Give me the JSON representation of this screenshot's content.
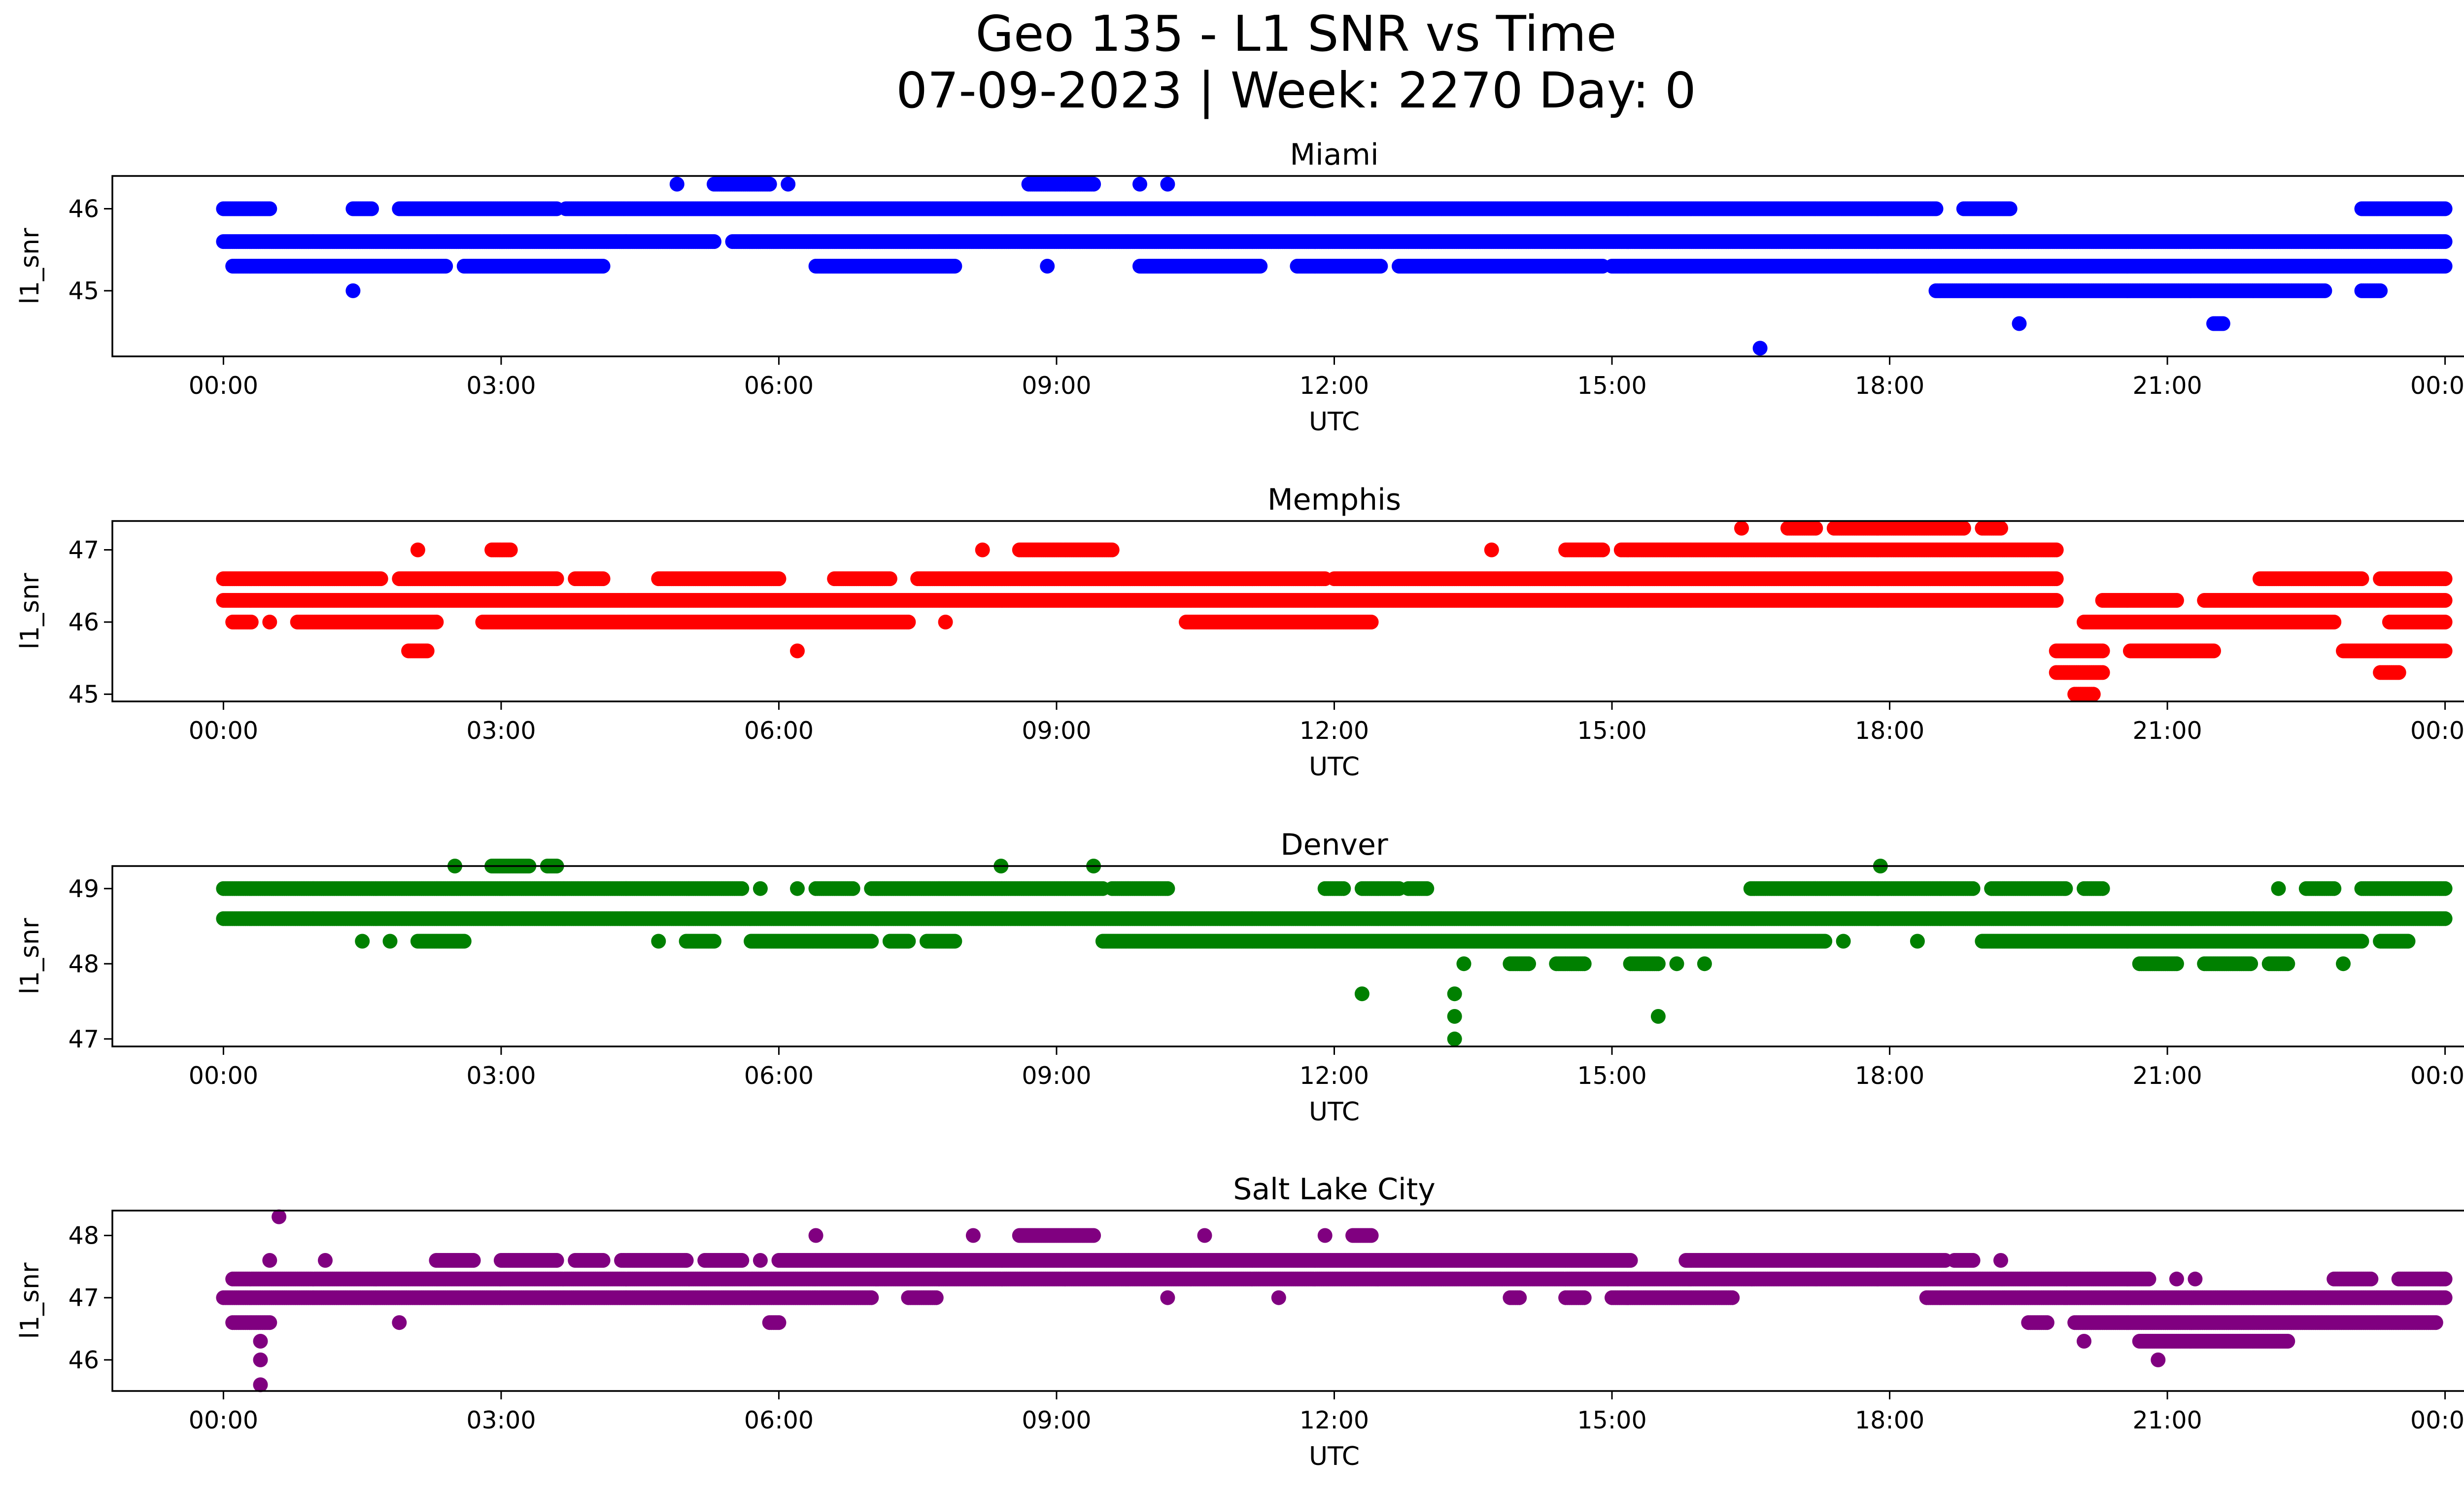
{
  "figure": {
    "title_line1": "Geo 135 - L1 SNR vs Time",
    "title_line2": "07-09-2023 | Week: 2270 Day: 0"
  },
  "chart_data": [
    {
      "type": "scatter",
      "title": "Miami",
      "xlabel": "UTC",
      "ylabel": "l1_snr",
      "color": "#0000ff",
      "x_ticks": [
        "00:00",
        "03:00",
        "06:00",
        "09:00",
        "12:00",
        "15:00",
        "18:00",
        "21:00",
        "00:00"
      ],
      "xlim_hours": [
        -1.2,
        25.2
      ],
      "ylim": [
        44.2,
        46.4
      ],
      "y_ticks": [
        45,
        46
      ],
      "levels": [
        {
          "y": 46.3,
          "spans": [
            [
              4.9,
              4.9
            ],
            [
              5.3,
              5.9
            ],
            [
              6.1,
              6.1
            ],
            [
              8.7,
              9.4
            ],
            [
              9.9,
              9.9
            ],
            [
              10.2,
              10.2
            ]
          ]
        },
        {
          "y": 46.0,
          "spans": [
            [
              0.0,
              0.5
            ],
            [
              1.4,
              1.6
            ],
            [
              1.9,
              3.6
            ],
            [
              3.7,
              18.5
            ],
            [
              18.8,
              19.3
            ],
            [
              23.1,
              24.0
            ]
          ]
        },
        {
          "y": 45.6,
          "spans": [
            [
              0.0,
              5.3
            ],
            [
              5.5,
              24.0
            ]
          ]
        },
        {
          "y": 45.3,
          "spans": [
            [
              0.1,
              2.4
            ],
            [
              2.6,
              4.1
            ],
            [
              6.4,
              7.9
            ],
            [
              8.9,
              8.9
            ],
            [
              9.9,
              11.2
            ],
            [
              11.6,
              12.5
            ],
            [
              12.7,
              14.9
            ],
            [
              15.0,
              24.0
            ]
          ]
        },
        {
          "y": 45.0,
          "spans": [
            [
              1.4,
              1.4
            ],
            [
              18.5,
              22.7
            ],
            [
              23.1,
              23.3
            ]
          ]
        },
        {
          "y": 44.6,
          "spans": [
            [
              19.4,
              19.4
            ],
            [
              21.5,
              21.6
            ]
          ]
        },
        {
          "y": 44.3,
          "spans": [
            [
              16.6,
              16.6
            ]
          ]
        }
      ]
    },
    {
      "type": "scatter",
      "title": "Memphis",
      "xlabel": "UTC",
      "ylabel": "l1_snr",
      "color": "#ff0000",
      "x_ticks": [
        "00:00",
        "03:00",
        "06:00",
        "09:00",
        "12:00",
        "15:00",
        "18:00",
        "21:00",
        "00:00"
      ],
      "xlim_hours": [
        -1.2,
        25.2
      ],
      "ylim": [
        44.9,
        47.4
      ],
      "y_ticks": [
        45,
        46,
        47
      ],
      "levels": [
        {
          "y": 47.3,
          "spans": [
            [
              16.4,
              16.4
            ],
            [
              16.9,
              17.2
            ],
            [
              17.4,
              18.8
            ],
            [
              19.0,
              19.2
            ]
          ]
        },
        {
          "y": 47.0,
          "spans": [
            [
              2.1,
              2.1
            ],
            [
              2.9,
              3.1
            ],
            [
              8.2,
              8.2
            ],
            [
              8.6,
              9.6
            ],
            [
              13.7,
              13.7
            ],
            [
              14.5,
              14.9
            ],
            [
              15.1,
              19.8
            ]
          ]
        },
        {
          "y": 46.6,
          "spans": [
            [
              0.0,
              1.7
            ],
            [
              1.9,
              3.6
            ],
            [
              3.8,
              4.1
            ],
            [
              4.7,
              6.0
            ],
            [
              6.6,
              7.2
            ],
            [
              7.5,
              11.9
            ],
            [
              12.0,
              19.8
            ],
            [
              22.0,
              23.1
            ],
            [
              23.3,
              24.0
            ]
          ]
        },
        {
          "y": 46.3,
          "spans": [
            [
              0.0,
              19.8
            ],
            [
              20.3,
              21.1
            ],
            [
              21.4,
              24.0
            ]
          ]
        },
        {
          "y": 46.0,
          "spans": [
            [
              0.1,
              0.3
            ],
            [
              0.5,
              0.5
            ],
            [
              0.8,
              2.3
            ],
            [
              2.8,
              7.4
            ],
            [
              7.8,
              7.8
            ],
            [
              10.4,
              12.4
            ],
            [
              20.1,
              22.8
            ],
            [
              23.4,
              24.0
            ]
          ]
        },
        {
          "y": 45.6,
          "spans": [
            [
              2.0,
              2.2
            ],
            [
              6.2,
              6.2
            ],
            [
              19.8,
              20.3
            ],
            [
              20.6,
              21.5
            ],
            [
              22.9,
              24.0
            ]
          ]
        },
        {
          "y": 45.3,
          "spans": [
            [
              19.8,
              20.3
            ],
            [
              23.3,
              23.5
            ]
          ]
        },
        {
          "y": 45.0,
          "spans": [
            [
              20.0,
              20.2
            ]
          ]
        }
      ]
    },
    {
      "type": "scatter",
      "title": "Denver",
      "xlabel": "UTC",
      "ylabel": "l1_snr",
      "color": "#008000",
      "x_ticks": [
        "00:00",
        "03:00",
        "06:00",
        "09:00",
        "12:00",
        "15:00",
        "18:00",
        "21:00",
        "00:00"
      ],
      "xlim_hours": [
        -1.2,
        25.2
      ],
      "ylim": [
        46.9,
        49.3
      ],
      "y_ticks": [
        47,
        48,
        49
      ],
      "levels": [
        {
          "y": 49.3,
          "spans": [
            [
              2.5,
              2.5
            ],
            [
              2.9,
              3.3
            ],
            [
              3.5,
              3.6
            ],
            [
              8.4,
              8.4
            ],
            [
              9.4,
              9.4
            ],
            [
              17.9,
              17.9
            ]
          ]
        },
        {
          "y": 49.0,
          "spans": [
            [
              0.0,
              5.6
            ],
            [
              5.8,
              5.8
            ],
            [
              6.2,
              6.2
            ],
            [
              6.4,
              6.8
            ],
            [
              7.0,
              9.5
            ],
            [
              9.6,
              10.2
            ],
            [
              11.9,
              12.1
            ],
            [
              12.3,
              12.7
            ],
            [
              12.8,
              13.0
            ],
            [
              16.5,
              18.9
            ],
            [
              19.1,
              19.9
            ],
            [
              20.1,
              20.3
            ],
            [
              22.2,
              22.2
            ],
            [
              22.5,
              22.8
            ],
            [
              23.1,
              24.0
            ]
          ]
        },
        {
          "y": 48.6,
          "spans": [
            [
              0.0,
              24.0
            ]
          ]
        },
        {
          "y": 48.3,
          "spans": [
            [
              1.5,
              1.5
            ],
            [
              1.8,
              1.8
            ],
            [
              2.1,
              2.6
            ],
            [
              4.7,
              4.7
            ],
            [
              5.0,
              5.3
            ],
            [
              5.7,
              7.0
            ],
            [
              7.2,
              7.4
            ],
            [
              7.6,
              7.9
            ],
            [
              9.5,
              17.3
            ],
            [
              17.5,
              17.5
            ],
            [
              18.3,
              18.3
            ],
            [
              19.0,
              23.1
            ],
            [
              23.3,
              23.6
            ]
          ]
        },
        {
          "y": 48.0,
          "spans": [
            [
              13.4,
              13.4
            ],
            [
              13.9,
              14.1
            ],
            [
              14.4,
              14.7
            ],
            [
              15.2,
              15.5
            ],
            [
              15.7,
              15.7
            ],
            [
              16.0,
              16.0
            ],
            [
              20.7,
              21.1
            ],
            [
              21.4,
              21.9
            ],
            [
              22.1,
              22.3
            ],
            [
              22.9,
              22.9
            ]
          ]
        },
        {
          "y": 47.6,
          "spans": [
            [
              12.3,
              12.3
            ],
            [
              13.3,
              13.3
            ]
          ]
        },
        {
          "y": 47.3,
          "spans": [
            [
              13.3,
              13.3
            ],
            [
              15.5,
              15.5
            ]
          ]
        },
        {
          "y": 47.0,
          "spans": [
            [
              13.3,
              13.3
            ]
          ]
        }
      ]
    },
    {
      "type": "scatter",
      "title": "Salt Lake City",
      "xlabel": "UTC",
      "ylabel": "l1_snr",
      "color": "#800080",
      "x_ticks": [
        "00:00",
        "03:00",
        "06:00",
        "09:00",
        "12:00",
        "15:00",
        "18:00",
        "21:00",
        "00:00"
      ],
      "xlim_hours": [
        -1.2,
        25.2
      ],
      "ylim": [
        45.5,
        48.4
      ],
      "y_ticks": [
        46,
        47,
        48
      ],
      "levels": [
        {
          "y": 48.3,
          "spans": [
            [
              0.6,
              0.6
            ]
          ]
        },
        {
          "y": 48.0,
          "spans": [
            [
              6.4,
              6.4
            ],
            [
              8.1,
              8.1
            ],
            [
              8.6,
              9.4
            ],
            [
              10.6,
              10.6
            ],
            [
              11.9,
              11.9
            ],
            [
              12.2,
              12.4
            ]
          ]
        },
        {
          "y": 47.6,
          "spans": [
            [
              0.5,
              0.5
            ],
            [
              1.1,
              1.1
            ],
            [
              2.3,
              2.7
            ],
            [
              3.0,
              3.6
            ],
            [
              3.8,
              4.1
            ],
            [
              4.3,
              5.0
            ],
            [
              5.2,
              5.6
            ],
            [
              5.8,
              5.8
            ],
            [
              6.0,
              15.2
            ],
            [
              15.8,
              18.6
            ],
            [
              18.7,
              18.9
            ],
            [
              19.2,
              19.2
            ]
          ]
        },
        {
          "y": 47.3,
          "spans": [
            [
              0.1,
              20.8
            ],
            [
              21.1,
              21.1
            ],
            [
              21.3,
              21.3
            ],
            [
              22.8,
              23.2
            ],
            [
              23.5,
              24.0
            ]
          ]
        },
        {
          "y": 47.0,
          "spans": [
            [
              0.0,
              7.0
            ],
            [
              7.4,
              7.7
            ],
            [
              10.2,
              10.2
            ],
            [
              11.4,
              11.4
            ],
            [
              13.9,
              14.0
            ],
            [
              14.5,
              14.7
            ],
            [
              15.0,
              16.3
            ],
            [
              18.4,
              24.0
            ]
          ]
        },
        {
          "y": 46.6,
          "spans": [
            [
              0.1,
              0.5
            ],
            [
              1.9,
              1.9
            ],
            [
              5.9,
              6.0
            ],
            [
              19.5,
              19.7
            ],
            [
              20.0,
              23.9
            ]
          ]
        },
        {
          "y": 46.3,
          "spans": [
            [
              0.4,
              0.4
            ],
            [
              20.1,
              20.1
            ],
            [
              20.7,
              22.3
            ]
          ]
        },
        {
          "y": 46.0,
          "spans": [
            [
              0.4,
              0.4
            ],
            [
              20.9,
              20.9
            ]
          ]
        },
        {
          "y": 45.6,
          "spans": [
            [
              0.4,
              0.4
            ]
          ]
        }
      ]
    }
  ]
}
